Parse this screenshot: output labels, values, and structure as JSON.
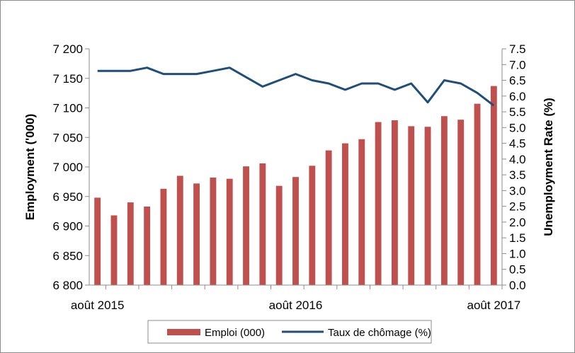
{
  "chart_data": {
    "type": "bar+line",
    "x_labels": [
      "août 2015",
      "août 2016",
      "août 2017"
    ],
    "months": 25,
    "series": [
      {
        "name": "Emploi (000)",
        "type": "bar",
        "axis": "left",
        "color": "#c0504d",
        "values": [
          6948,
          6918,
          6940,
          6933,
          6963,
          6985,
          6972,
          6982,
          6980,
          7001,
          7006,
          6968,
          6983,
          7002,
          7028,
          7040,
          7047,
          7076,
          7079,
          7069,
          7068,
          7086,
          7080,
          7107,
          7137
        ]
      },
      {
        "name": "Taux de chômage (%)",
        "type": "line",
        "axis": "right",
        "color": "#1f4e79",
        "values": [
          6.8,
          6.8,
          6.8,
          6.9,
          6.7,
          6.7,
          6.7,
          6.8,
          6.9,
          6.6,
          6.3,
          6.5,
          6.7,
          6.5,
          6.4,
          6.2,
          6.4,
          6.4,
          6.2,
          6.4,
          5.8,
          6.5,
          6.4,
          6.1,
          5.7
        ]
      }
    ],
    "y_left": {
      "label": "Employment ('000)",
      "min": 6800,
      "max": 7200,
      "step": 50,
      "tick_labels": [
        "6 800",
        "6 850",
        "6 900",
        "6 950",
        "7 000",
        "7 050",
        "7 100",
        "7 150",
        "7 200"
      ]
    },
    "y_right": {
      "label": "Unemployment Rate (%)",
      "min": 0,
      "max": 7.5,
      "step": 0.5,
      "tick_labels": [
        "0.0",
        "0.5",
        "1.0",
        "1.5",
        "2.0",
        "2.5",
        "3.0",
        "3.5",
        "4.0",
        "4.5",
        "5.0",
        "5.5",
        "6.0",
        "6.5",
        "7.0",
        "7.5"
      ]
    },
    "grid": false,
    "legend_position": "bottom"
  },
  "legend": {
    "bar_label": "Emploi (000)",
    "line_label": "Taux de chômage (%)"
  }
}
